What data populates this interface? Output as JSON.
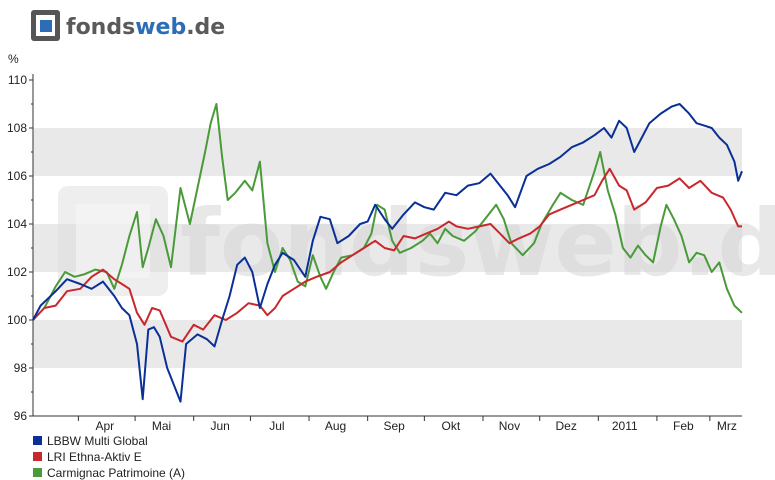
{
  "logo": {
    "brand": "fonds",
    "brand_accent": "web",
    "brand_suffix": ".de",
    "brand_color": "#5a5a5a",
    "accent_color": "#2d6db5"
  },
  "watermark": {
    "text": "fondsweb.de"
  },
  "chart_data": {
    "type": "line",
    "ylabel": "%",
    "ylim": [
      96,
      110
    ],
    "yticks": [
      96,
      98,
      100,
      102,
      104,
      106,
      108,
      110
    ],
    "grid": "horizontal-bands",
    "legend_position": "bottom-left",
    "x_range": [
      "2010-03-08",
      "2011-03-18"
    ],
    "x_tick_labels": [
      {
        "label": "Apr",
        "date": "2010-04-15"
      },
      {
        "label": "Mai",
        "date": "2010-05-15"
      },
      {
        "label": "Jun",
        "date": "2010-06-15"
      },
      {
        "label": "Jul",
        "date": "2010-07-15"
      },
      {
        "label": "Aug",
        "date": "2010-08-15"
      },
      {
        "label": "Sep",
        "date": "2010-09-15"
      },
      {
        "label": "Okt",
        "date": "2010-10-15"
      },
      {
        "label": "Nov",
        "date": "2010-11-15"
      },
      {
        "label": "Dez",
        "date": "2010-12-15"
      },
      {
        "label": "2011",
        "date": "2011-01-15"
      },
      {
        "label": "Feb",
        "date": "2011-02-15"
      },
      {
        "label": "Mrz",
        "date": "2011-03-10"
      }
    ],
    "series": [
      {
        "name": "LBBW Multi Global",
        "color": "#0a2f96",
        "points": [
          [
            "2010-03-08",
            100.0
          ],
          [
            "2010-03-12",
            100.6
          ],
          [
            "2010-03-20",
            101.2
          ],
          [
            "2010-03-26",
            101.7
          ],
          [
            "2010-04-02",
            101.5
          ],
          [
            "2010-04-08",
            101.3
          ],
          [
            "2010-04-14",
            101.6
          ],
          [
            "2010-04-20",
            101.0
          ],
          [
            "2010-04-24",
            100.5
          ],
          [
            "2010-04-28",
            100.2
          ],
          [
            "2010-05-02",
            99.0
          ],
          [
            "2010-05-05",
            96.7
          ],
          [
            "2010-05-08",
            99.6
          ],
          [
            "2010-05-11",
            99.7
          ],
          [
            "2010-05-14",
            99.3
          ],
          [
            "2010-05-18",
            98.0
          ],
          [
            "2010-05-22",
            97.2
          ],
          [
            "2010-05-25",
            96.6
          ],
          [
            "2010-05-28",
            99.0
          ],
          [
            "2010-06-03",
            99.4
          ],
          [
            "2010-06-08",
            99.2
          ],
          [
            "2010-06-12",
            98.9
          ],
          [
            "2010-06-16",
            100.0
          ],
          [
            "2010-06-20",
            101.0
          ],
          [
            "2010-06-24",
            102.3
          ],
          [
            "2010-06-28",
            102.6
          ],
          [
            "2010-07-02",
            102.0
          ],
          [
            "2010-07-06",
            100.5
          ],
          [
            "2010-07-10",
            101.5
          ],
          [
            "2010-07-14",
            102.3
          ],
          [
            "2010-07-18",
            102.8
          ],
          [
            "2010-07-24",
            102.5
          ],
          [
            "2010-07-30",
            101.8
          ],
          [
            "2010-08-03",
            103.3
          ],
          [
            "2010-08-07",
            104.3
          ],
          [
            "2010-08-12",
            104.2
          ],
          [
            "2010-08-16",
            103.2
          ],
          [
            "2010-08-22",
            103.5
          ],
          [
            "2010-08-28",
            104.0
          ],
          [
            "2010-09-01",
            104.1
          ],
          [
            "2010-09-05",
            104.8
          ],
          [
            "2010-09-10",
            104.2
          ],
          [
            "2010-09-14",
            103.8
          ],
          [
            "2010-09-20",
            104.4
          ],
          [
            "2010-09-26",
            104.9
          ],
          [
            "2010-10-01",
            104.7
          ],
          [
            "2010-10-06",
            104.6
          ],
          [
            "2010-10-12",
            105.3
          ],
          [
            "2010-10-18",
            105.2
          ],
          [
            "2010-10-24",
            105.6
          ],
          [
            "2010-10-30",
            105.7
          ],
          [
            "2010-11-05",
            106.1
          ],
          [
            "2010-11-09",
            105.7
          ],
          [
            "2010-11-14",
            105.2
          ],
          [
            "2010-11-18",
            104.7
          ],
          [
            "2010-11-24",
            106.0
          ],
          [
            "2010-11-30",
            106.3
          ],
          [
            "2010-12-06",
            106.5
          ],
          [
            "2010-12-12",
            106.8
          ],
          [
            "2010-12-18",
            107.2
          ],
          [
            "2010-12-24",
            107.4
          ],
          [
            "2010-12-30",
            107.7
          ],
          [
            "2011-01-04",
            108.0
          ],
          [
            "2011-01-08",
            107.6
          ],
          [
            "2011-01-12",
            108.3
          ],
          [
            "2011-01-16",
            108.0
          ],
          [
            "2011-01-20",
            107.0
          ],
          [
            "2011-01-24",
            107.6
          ],
          [
            "2011-01-28",
            108.2
          ],
          [
            "2011-02-03",
            108.6
          ],
          [
            "2011-02-09",
            108.9
          ],
          [
            "2011-02-13",
            109.0
          ],
          [
            "2011-02-18",
            108.6
          ],
          [
            "2011-02-22",
            108.2
          ],
          [
            "2011-02-26",
            108.1
          ],
          [
            "2011-03-02",
            108.0
          ],
          [
            "2011-03-06",
            107.6
          ],
          [
            "2011-03-10",
            107.3
          ],
          [
            "2011-03-14",
            106.6
          ],
          [
            "2011-03-16",
            105.8
          ],
          [
            "2011-03-18",
            106.2
          ]
        ]
      },
      {
        "name": "LRI Ethna-Aktiv E",
        "color": "#c8282d",
        "points": [
          [
            "2010-03-08",
            100.0
          ],
          [
            "2010-03-14",
            100.5
          ],
          [
            "2010-03-20",
            100.6
          ],
          [
            "2010-03-26",
            101.2
          ],
          [
            "2010-04-02",
            101.3
          ],
          [
            "2010-04-08",
            101.8
          ],
          [
            "2010-04-14",
            102.1
          ],
          [
            "2010-04-20",
            101.7
          ],
          [
            "2010-04-24",
            101.5
          ],
          [
            "2010-04-28",
            101.3
          ],
          [
            "2010-05-02",
            100.3
          ],
          [
            "2010-05-06",
            99.8
          ],
          [
            "2010-05-10",
            100.5
          ],
          [
            "2010-05-14",
            100.4
          ],
          [
            "2010-05-20",
            99.3
          ],
          [
            "2010-05-26",
            99.1
          ],
          [
            "2010-06-01",
            99.8
          ],
          [
            "2010-06-06",
            99.6
          ],
          [
            "2010-06-12",
            100.2
          ],
          [
            "2010-06-18",
            100.0
          ],
          [
            "2010-06-24",
            100.3
          ],
          [
            "2010-06-30",
            100.7
          ],
          [
            "2010-07-06",
            100.6
          ],
          [
            "2010-07-10",
            100.2
          ],
          [
            "2010-07-14",
            100.5
          ],
          [
            "2010-07-18",
            101.0
          ],
          [
            "2010-07-24",
            101.3
          ],
          [
            "2010-07-30",
            101.6
          ],
          [
            "2010-08-05",
            101.8
          ],
          [
            "2010-08-12",
            102.0
          ],
          [
            "2010-08-18",
            102.4
          ],
          [
            "2010-08-24",
            102.7
          ],
          [
            "2010-08-30",
            103.0
          ],
          [
            "2010-09-05",
            103.3
          ],
          [
            "2010-09-10",
            103.0
          ],
          [
            "2010-09-15",
            102.9
          ],
          [
            "2010-09-20",
            103.5
          ],
          [
            "2010-09-26",
            103.4
          ],
          [
            "2010-10-02",
            103.6
          ],
          [
            "2010-10-08",
            103.8
          ],
          [
            "2010-10-14",
            104.1
          ],
          [
            "2010-10-18",
            103.9
          ],
          [
            "2010-10-24",
            103.8
          ],
          [
            "2010-10-30",
            103.9
          ],
          [
            "2010-11-05",
            104.0
          ],
          [
            "2010-11-10",
            103.6
          ],
          [
            "2010-11-15",
            103.2
          ],
          [
            "2010-11-20",
            103.4
          ],
          [
            "2010-11-26",
            103.6
          ],
          [
            "2010-12-01",
            103.9
          ],
          [
            "2010-12-06",
            104.4
          ],
          [
            "2010-12-12",
            104.6
          ],
          [
            "2010-12-18",
            104.8
          ],
          [
            "2010-12-24",
            105.0
          ],
          [
            "2010-12-30",
            105.2
          ],
          [
            "2011-01-03",
            105.8
          ],
          [
            "2011-01-07",
            106.3
          ],
          [
            "2011-01-12",
            105.6
          ],
          [
            "2011-01-16",
            105.4
          ],
          [
            "2011-01-20",
            104.6
          ],
          [
            "2011-01-26",
            104.9
          ],
          [
            "2011-02-01",
            105.5
          ],
          [
            "2011-02-07",
            105.6
          ],
          [
            "2011-02-13",
            105.9
          ],
          [
            "2011-02-18",
            105.5
          ],
          [
            "2011-02-24",
            105.8
          ],
          [
            "2011-03-02",
            105.3
          ],
          [
            "2011-03-08",
            105.1
          ],
          [
            "2011-03-12",
            104.6
          ],
          [
            "2011-03-16",
            103.9
          ],
          [
            "2011-03-18",
            103.9
          ]
        ]
      },
      {
        "name": "Carmignac Patrimoine (A)",
        "color": "#4a9a3a",
        "points": [
          [
            "2010-03-08",
            100.0
          ],
          [
            "2010-03-14",
            100.5
          ],
          [
            "2010-03-20",
            101.4
          ],
          [
            "2010-03-25",
            102.0
          ],
          [
            "2010-03-30",
            101.8
          ],
          [
            "2010-04-04",
            101.9
          ],
          [
            "2010-04-10",
            102.1
          ],
          [
            "2010-04-16",
            102.0
          ],
          [
            "2010-04-20",
            101.3
          ],
          [
            "2010-04-24",
            102.3
          ],
          [
            "2010-04-28",
            103.5
          ],
          [
            "2010-05-02",
            104.5
          ],
          [
            "2010-05-05",
            102.2
          ],
          [
            "2010-05-08",
            103.0
          ],
          [
            "2010-05-12",
            104.2
          ],
          [
            "2010-05-16",
            103.5
          ],
          [
            "2010-05-20",
            102.2
          ],
          [
            "2010-05-25",
            105.5
          ],
          [
            "2010-05-30",
            104.0
          ],
          [
            "2010-06-03",
            105.5
          ],
          [
            "2010-06-07",
            107.0
          ],
          [
            "2010-06-10",
            108.2
          ],
          [
            "2010-06-13",
            109.0
          ],
          [
            "2010-06-16",
            106.8
          ],
          [
            "2010-06-19",
            105.0
          ],
          [
            "2010-06-23",
            105.3
          ],
          [
            "2010-06-28",
            105.8
          ],
          [
            "2010-07-02",
            105.4
          ],
          [
            "2010-07-06",
            106.6
          ],
          [
            "2010-07-10",
            103.2
          ],
          [
            "2010-07-14",
            102.0
          ],
          [
            "2010-07-18",
            103.0
          ],
          [
            "2010-07-22",
            102.5
          ],
          [
            "2010-07-26",
            101.6
          ],
          [
            "2010-07-30",
            101.4
          ],
          [
            "2010-08-03",
            102.7
          ],
          [
            "2010-08-07",
            101.8
          ],
          [
            "2010-08-10",
            101.3
          ],
          [
            "2010-08-14",
            102.0
          ],
          [
            "2010-08-18",
            102.6
          ],
          [
            "2010-08-24",
            102.7
          ],
          [
            "2010-08-30",
            103.0
          ],
          [
            "2010-09-03",
            103.6
          ],
          [
            "2010-09-06",
            104.8
          ],
          [
            "2010-09-10",
            104.6
          ],
          [
            "2010-09-14",
            103.3
          ],
          [
            "2010-09-18",
            102.8
          ],
          [
            "2010-09-24",
            103.0
          ],
          [
            "2010-09-30",
            103.3
          ],
          [
            "2010-10-04",
            103.6
          ],
          [
            "2010-10-08",
            103.2
          ],
          [
            "2010-10-12",
            103.8
          ],
          [
            "2010-10-16",
            103.5
          ],
          [
            "2010-10-22",
            103.3
          ],
          [
            "2010-10-28",
            103.7
          ],
          [
            "2010-11-03",
            104.3
          ],
          [
            "2010-11-08",
            104.8
          ],
          [
            "2010-11-12",
            104.2
          ],
          [
            "2010-11-16",
            103.2
          ],
          [
            "2010-11-22",
            102.7
          ],
          [
            "2010-11-28",
            103.2
          ],
          [
            "2010-12-02",
            104.0
          ],
          [
            "2010-12-08",
            104.8
          ],
          [
            "2010-12-12",
            105.3
          ],
          [
            "2010-12-18",
            105.0
          ],
          [
            "2010-12-24",
            104.8
          ],
          [
            "2010-12-30",
            106.2
          ],
          [
            "2011-01-02",
            107.0
          ],
          [
            "2011-01-06",
            105.4
          ],
          [
            "2011-01-10",
            104.4
          ],
          [
            "2011-01-14",
            103.0
          ],
          [
            "2011-01-18",
            102.6
          ],
          [
            "2011-01-22",
            103.1
          ],
          [
            "2011-01-26",
            102.7
          ],
          [
            "2011-01-30",
            102.4
          ],
          [
            "2011-02-03",
            103.9
          ],
          [
            "2011-02-06",
            104.8
          ],
          [
            "2011-02-10",
            104.2
          ],
          [
            "2011-02-14",
            103.5
          ],
          [
            "2011-02-18",
            102.4
          ],
          [
            "2011-02-22",
            102.8
          ],
          [
            "2011-02-26",
            102.7
          ],
          [
            "2011-03-02",
            102.0
          ],
          [
            "2011-03-06",
            102.4
          ],
          [
            "2011-03-10",
            101.3
          ],
          [
            "2011-03-14",
            100.6
          ],
          [
            "2011-03-18",
            100.3
          ]
        ]
      }
    ]
  }
}
